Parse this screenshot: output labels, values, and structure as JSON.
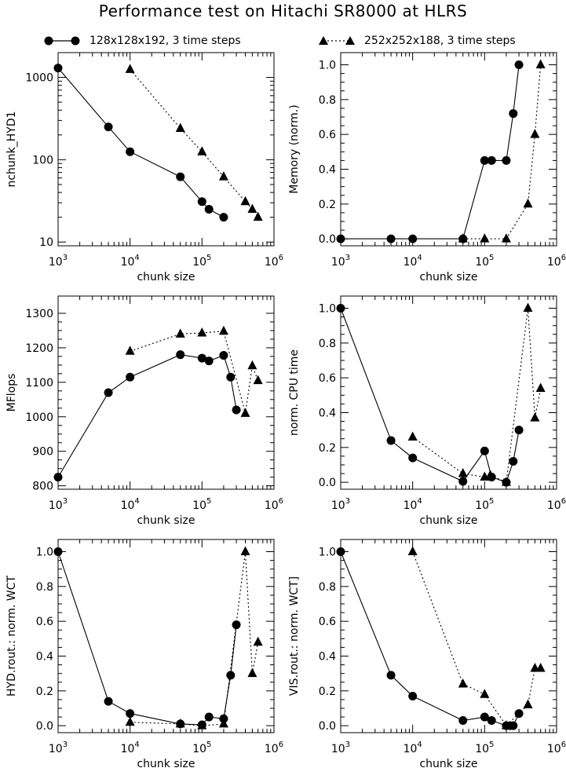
{
  "figure": {
    "title": "Performance test on Hitachi SR8000 at HLRS"
  },
  "legend": [
    {
      "marker": "circle",
      "line": "solid",
      "label": "128x128x192, 3 time steps"
    },
    {
      "marker": "triangle",
      "line": "dotted",
      "label": "252x252x188, 3 time steps"
    }
  ],
  "chart_data": [
    {
      "type": "line",
      "xlabel": "chunk size",
      "ylabel": "nchunk_HYD1",
      "xscale": "log",
      "xlim": [
        1000,
        1000000
      ],
      "yscale": "log",
      "ylim": [
        9,
        2000
      ],
      "xticks": [
        1000,
        10000,
        100000,
        1000000
      ],
      "xtick_labels": [
        [
          "10",
          "3"
        ],
        [
          "10",
          "4"
        ],
        [
          "10",
          "5"
        ],
        [
          "10",
          "6"
        ]
      ],
      "yticks": [
        10,
        100,
        1000
      ],
      "ytick_labels": [
        "10",
        "100",
        "1000"
      ],
      "series": [
        {
          "marker": "circle",
          "line": "solid",
          "x": [
            1000,
            5000,
            10000,
            50000,
            100000,
            125000,
            200000
          ],
          "y": [
            1300,
            250,
            125,
            62,
            31,
            25,
            20
          ]
        },
        {
          "marker": "triangle",
          "line": "dotted",
          "x": [
            10000,
            50000,
            100000,
            200000,
            400000,
            500000,
            600000
          ],
          "y": [
            1250,
            240,
            125,
            62,
            31,
            25,
            20
          ]
        }
      ]
    },
    {
      "type": "line",
      "xlabel": "chunk size",
      "ylabel": "Memory (norm.)",
      "xscale": "log",
      "xlim": [
        1000,
        1000000
      ],
      "yscale": "linear",
      "ylim": [
        -0.04,
        1.07
      ],
      "xticks": [
        1000,
        10000,
        100000,
        1000000
      ],
      "xtick_labels": [
        [
          "10",
          "3"
        ],
        [
          "10",
          "4"
        ],
        [
          "10",
          "5"
        ],
        [
          "10",
          "6"
        ]
      ],
      "yticks": [
        0,
        0.2,
        0.4,
        0.6,
        0.8,
        1.0
      ],
      "ytick_labels": [
        "0.0",
        "0.2",
        "0.4",
        "0.6",
        "0.8",
        "1.0"
      ],
      "series": [
        {
          "marker": "circle",
          "line": "solid",
          "x": [
            1000,
            5000,
            10000,
            50000,
            100000,
            125000,
            200000,
            250000,
            300000
          ],
          "y": [
            0,
            0,
            0,
            0,
            0.45,
            0.45,
            0.45,
            0.72,
            1.0
          ]
        },
        {
          "marker": "triangle",
          "line": "dotted",
          "x": [
            50000,
            100000,
            200000,
            400000,
            500000,
            600000
          ],
          "y": [
            0,
            0,
            0,
            0.2,
            0.6,
            1.0
          ]
        }
      ]
    },
    {
      "type": "line",
      "xlabel": "chunk size",
      "ylabel": "MFlops",
      "xscale": "log",
      "xlim": [
        1000,
        1000000
      ],
      "yscale": "linear",
      "ylim": [
        790,
        1350
      ],
      "xticks": [
        1000,
        10000,
        100000,
        1000000
      ],
      "xtick_labels": [
        [
          "10",
          "3"
        ],
        [
          "10",
          "4"
        ],
        [
          "10",
          "5"
        ],
        [
          "10",
          "6"
        ]
      ],
      "yticks": [
        800,
        900,
        1000,
        1100,
        1200,
        1300
      ],
      "ytick_labels": [
        "800",
        "900",
        "1000",
        "1100",
        "1200",
        "1300"
      ],
      "series": [
        {
          "marker": "circle",
          "line": "solid",
          "x": [
            1000,
            5000,
            10000,
            50000,
            100000,
            125000,
            200000,
            250000,
            300000
          ],
          "y": [
            825,
            1070,
            1115,
            1180,
            1170,
            1162,
            1178,
            1115,
            1020
          ]
        },
        {
          "marker": "triangle",
          "line": "dotted",
          "x": [
            10000,
            50000,
            100000,
            200000,
            400000,
            500000,
            600000
          ],
          "y": [
            1190,
            1240,
            1243,
            1248,
            1010,
            1148,
            1105
          ]
        }
      ]
    },
    {
      "type": "line",
      "xlabel": "chunk size",
      "ylabel": "norm. CPU time",
      "xscale": "log",
      "xlim": [
        1000,
        1000000
      ],
      "yscale": "linear",
      "ylim": [
        -0.04,
        1.07
      ],
      "xticks": [
        1000,
        10000,
        100000,
        1000000
      ],
      "xtick_labels": [
        [
          "10",
          "3"
        ],
        [
          "10",
          "4"
        ],
        [
          "10",
          "5"
        ],
        [
          "10",
          "6"
        ]
      ],
      "yticks": [
        0,
        0.2,
        0.4,
        0.6,
        0.8,
        1.0
      ],
      "ytick_labels": [
        "0.0",
        "0.2",
        "0.4",
        "0.6",
        "0.8",
        "1.0"
      ],
      "series": [
        {
          "marker": "circle",
          "line": "solid",
          "x": [
            1000,
            5000,
            10000,
            50000,
            100000,
            125000,
            200000,
            250000,
            300000
          ],
          "y": [
            1.0,
            0.24,
            0.14,
            0.005,
            0.18,
            0.03,
            0.0,
            0.12,
            0.3
          ]
        },
        {
          "marker": "triangle",
          "line": "dotted",
          "x": [
            10000,
            50000,
            100000,
            120000,
            200000,
            400000,
            500000,
            600000
          ],
          "y": [
            0.26,
            0.05,
            0.03,
            0.04,
            0.0,
            1.0,
            0.37,
            0.54
          ]
        }
      ]
    },
    {
      "type": "line",
      "xlabel": "chunk size",
      "ylabel": "HYD.rout.: norm. WCT",
      "xscale": "log",
      "xlim": [
        1000,
        1000000
      ],
      "yscale": "linear",
      "ylim": [
        -0.04,
        1.07
      ],
      "xticks": [
        1000,
        10000,
        100000,
        1000000
      ],
      "xtick_labels": [
        [
          "10",
          "3"
        ],
        [
          "10",
          "4"
        ],
        [
          "10",
          "5"
        ],
        [
          "10",
          "6"
        ]
      ],
      "yticks": [
        0,
        0.2,
        0.4,
        0.6,
        0.8,
        1.0
      ],
      "ytick_labels": [
        "0.0",
        "0.2",
        "0.4",
        "0.6",
        "0.8",
        "1.0"
      ],
      "series": [
        {
          "marker": "circle",
          "line": "solid",
          "x": [
            1000,
            5000,
            10000,
            50000,
            100000,
            125000,
            200000,
            250000,
            300000
          ],
          "y": [
            1.0,
            0.14,
            0.07,
            0.01,
            0.005,
            0.05,
            0.04,
            0.29,
            0.58
          ]
        },
        {
          "marker": "triangle",
          "line": "dotted",
          "x": [
            10000,
            50000,
            100000,
            200000,
            400000,
            500000,
            600000
          ],
          "y": [
            0.02,
            0.01,
            0.0,
            0.01,
            1.0,
            0.3,
            0.48
          ]
        }
      ]
    },
    {
      "type": "line",
      "xlabel": "chunk size",
      "ylabel": "VIS.rout.: norm. WCT]",
      "xscale": "log",
      "xlim": [
        1000,
        1000000
      ],
      "yscale": "linear",
      "ylim": [
        -0.04,
        1.07
      ],
      "xticks": [
        1000,
        10000,
        100000,
        1000000
      ],
      "xtick_labels": [
        [
          "10",
          "3"
        ],
        [
          "10",
          "4"
        ],
        [
          "10",
          "5"
        ],
        [
          "10",
          "6"
        ]
      ],
      "yticks": [
        0,
        0.2,
        0.4,
        0.6,
        0.8,
        1.0
      ],
      "ytick_labels": [
        "0.0",
        "0.2",
        "0.4",
        "0.6",
        "0.8",
        "1.0"
      ],
      "series": [
        {
          "marker": "circle",
          "line": "solid",
          "x": [
            1000,
            5000,
            10000,
            50000,
            100000,
            125000,
            200000,
            225000,
            250000,
            300000
          ],
          "y": [
            1.0,
            0.29,
            0.17,
            0.03,
            0.05,
            0.03,
            0.0,
            0.0,
            0.0,
            0.07
          ]
        },
        {
          "marker": "triangle",
          "line": "dotted",
          "x": [
            10000,
            50000,
            100000,
            200000,
            400000,
            500000,
            600000
          ],
          "y": [
            1.0,
            0.24,
            0.18,
            0.0,
            0.12,
            0.33,
            0.33
          ]
        }
      ]
    }
  ]
}
